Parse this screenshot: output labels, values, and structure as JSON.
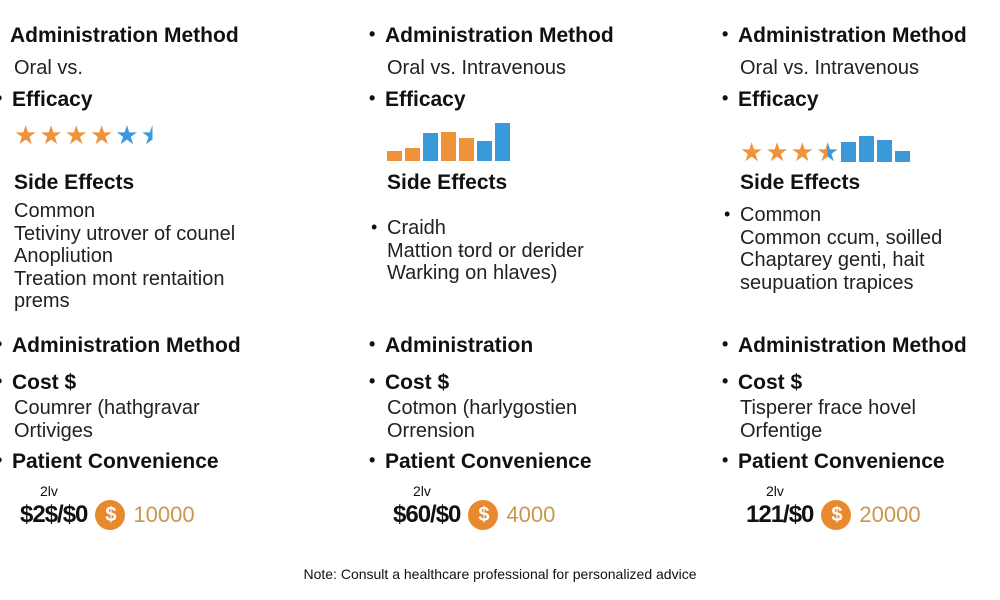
{
  "colors": {
    "orange": "#F0923A",
    "blue": "#3A9AD9",
    "coin": "#E8892E",
    "amount": "#C9974F"
  },
  "columns": [
    {
      "admin_heading": "Administration Method",
      "admin_value": "Oral vs.",
      "efficacy_heading": "Efficacy",
      "efficacy_visual": {
        "type": "stars",
        "orange_stars": 4,
        "blue_stars": 1.5
      },
      "side_effects_heading": "Side Effects",
      "side_effects": [
        "Common",
        "Tetiviny utrover of counel",
        "Anopliution",
        "Treation mont rentaition",
        "prems"
      ],
      "admin2_heading": "Administration Method",
      "cost_heading": "Cost $",
      "cost_lines": [
        "Coumrer (hathgravar",
        "Ortiviges"
      ],
      "convenience_heading": "Patient Convenience",
      "price_small": "2lv",
      "price": "$2$/$0",
      "coin_symbol": "$",
      "amount": "10000"
    },
    {
      "admin_heading": "Administration Method",
      "admin_value": "Oral vs. Intravenous",
      "efficacy_heading": "Efficacy",
      "efficacy_visual": {
        "type": "bars",
        "bars": [
          {
            "value": 10,
            "color": "orange"
          },
          {
            "value": 13,
            "color": "orange"
          },
          {
            "value": 28,
            "color": "blue"
          },
          {
            "value": 29,
            "color": "orange"
          },
          {
            "value": 23,
            "color": "orange"
          },
          {
            "value": 20,
            "color": "blue"
          },
          {
            "value": 38,
            "color": "blue"
          }
        ]
      },
      "side_effects_heading": "Side Effects",
      "side_effects": [
        "Craidh",
        "Mattion ŧord  or derider",
        "Warking on hlaves)"
      ],
      "admin2_heading": "Administration",
      "cost_heading": "Cost $",
      "cost_lines": [
        "Cotmon (harlygostien",
        "Orrension"
      ],
      "convenience_heading": "Patient Convenience",
      "price_small": "2lv",
      "price": "$60/$0",
      "coin_symbol": "$",
      "amount": "4000"
    },
    {
      "admin_heading": "Administration Method",
      "admin_value": "Oral vs. Intravenous",
      "efficacy_heading": "Efficacy",
      "efficacy_visual": {
        "type": "stars+bars",
        "orange_stars": 3.5,
        "bars": [
          {
            "value": 20,
            "color": "blue"
          },
          {
            "value": 26,
            "color": "blue"
          },
          {
            "value": 22,
            "color": "blue"
          },
          {
            "value": 11,
            "color": "blue"
          }
        ]
      },
      "side_effects_heading": "Side Effects",
      "side_effects": [
        "Common",
        "Common ccum, soilled",
        "Chaptarey genti, hait",
        "seupuation trapices"
      ],
      "admin2_heading": "Administration Method",
      "cost_heading": "Cost $",
      "cost_lines": [
        "Tisperer frace hovel",
        "Orfentige"
      ],
      "convenience_heading": "Patient Convenience",
      "price_small": "2lv",
      "price": "121/$0",
      "coin_symbol": "$",
      "amount": "20000"
    }
  ],
  "note": "Note: Consult a healthcare professional for personalized advice"
}
